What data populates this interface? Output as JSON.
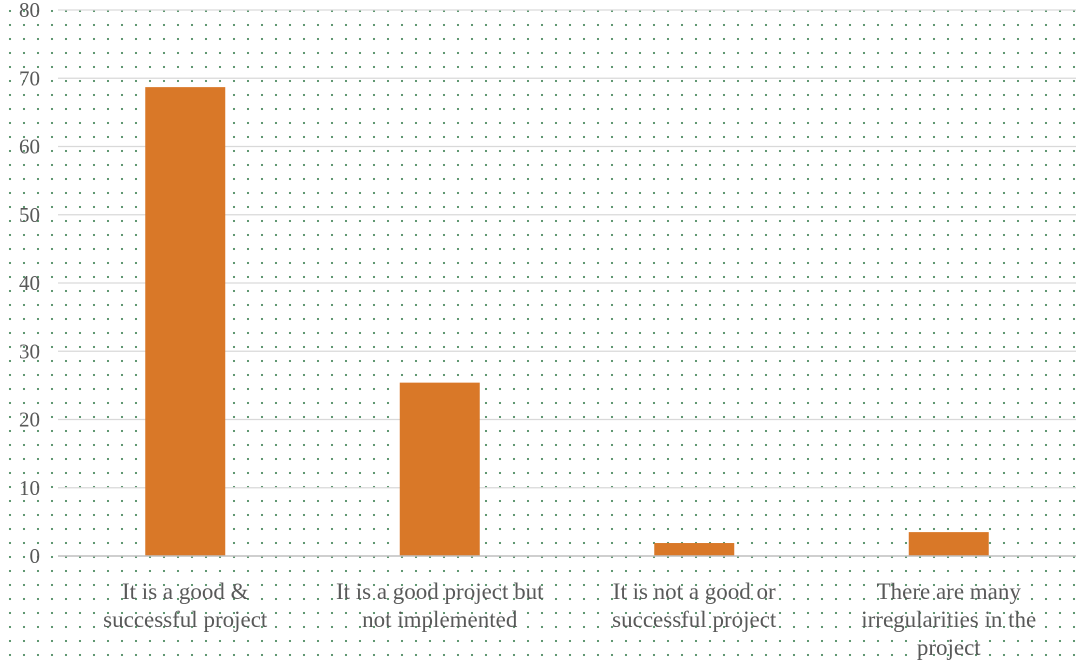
{
  "chart_data": {
    "type": "bar",
    "categories": [
      [
        "It is a good &",
        "successful project"
      ],
      [
        "It is a good project but",
        "not implemented"
      ],
      [
        "It is not a good or",
        "successful project"
      ],
      [
        "There are many",
        "irregularities in the",
        "project"
      ]
    ],
    "values": [
      68.7,
      25.4,
      1.9,
      3.5
    ],
    "ylim": [
      0,
      80
    ],
    "yticks": [
      0,
      10,
      20,
      30,
      40,
      50,
      60,
      70,
      80
    ],
    "grid": true,
    "legend": "none",
    "bar_color": "#d97828",
    "grid_color": "#d9d9d9",
    "axis_color": "#bfbfbf"
  }
}
